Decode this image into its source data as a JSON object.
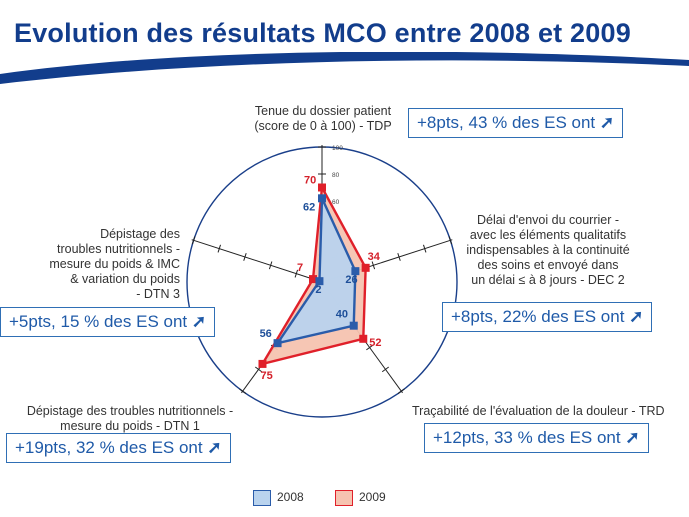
{
  "title": "Evolution des résultats MCO entre 2008 et 2009",
  "axis_labels": [
    "Tenue du dossier patient\n(score de 0 à 100) - TDP",
    "Délai d'envoi du courrier -\navec les éléments qualitatifs\nindispensables à la continuité\ndes soins et envoyé dans\nun délai ≤ à 8 jours - DEC 2",
    "Traçabilité de l'évaluation de la douleur - TRD",
    "Dépistage des troubles nutritionnels -\nmesure du poids - DTN 1",
    "Dépistage des\ntroubles nutritionnels -\nmesure du poids & IMC\n& variation du poids\n- DTN 3"
  ],
  "boxes": [
    "+8pts, 43 % des ES ont",
    "+8pts, 22% des ES ont",
    "+12pts, 33 % des ES ont",
    "+19pts, 32 % des ES ont",
    "+5pts, 15 % des ES ont"
  ],
  "arrow_glyph": "➚",
  "legend": {
    "2008": "2008",
    "2009": "2009"
  },
  "colors": {
    "title": "#123d8c",
    "box_border": "#2f6fb5",
    "s2008_fill": "#b9d3ee",
    "s2008_line": "#2a5caa",
    "s2009_fill": "#f6c3b0",
    "s2009_line": "#e0202a"
  },
  "chart_data": {
    "type": "radar",
    "categories": [
      "TDP",
      "DEC 2",
      "TRD",
      "DTN 1",
      "DTN 3"
    ],
    "rmax": 100,
    "ticks": [
      "20",
      "40",
      "60",
      "80",
      "100"
    ],
    "series": [
      {
        "name": "2008",
        "values": [
          62,
          26,
          40,
          56,
          2
        ]
      },
      {
        "name": "2009",
        "values": [
          70,
          34,
          52,
          75,
          7
        ]
      }
    ]
  }
}
